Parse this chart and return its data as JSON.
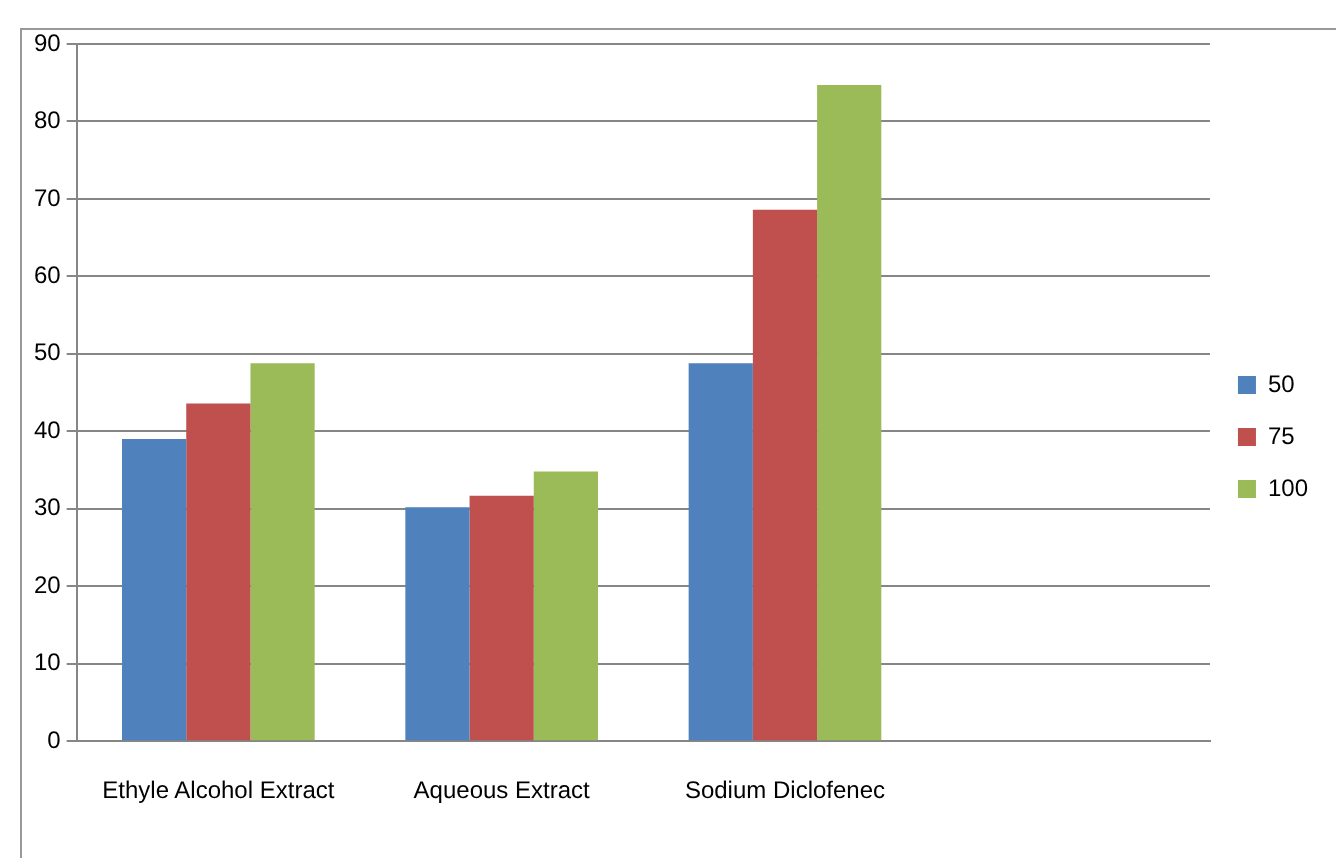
{
  "chart_data": {
    "type": "bar",
    "categories": [
      "Ethyle Alcohol Extract",
      "Aqueous Extract",
      "Sodium Diclofenec",
      null
    ],
    "series": [
      {
        "name": "50",
        "color": "#4f81bd",
        "values": [
          39.0,
          30.2,
          48.8,
          null
        ]
      },
      {
        "name": "75",
        "color": "#c0504d",
        "values": [
          43.6,
          31.7,
          68.6,
          null
        ]
      },
      {
        "name": "100",
        "color": "#9bbb59",
        "values": [
          48.8,
          34.8,
          84.7,
          null
        ]
      }
    ],
    "ylim": [
      0,
      90
    ],
    "yticks": [
      0,
      10,
      20,
      30,
      40,
      50,
      60,
      70,
      80,
      90
    ],
    "grid": "y",
    "legend": "right"
  }
}
